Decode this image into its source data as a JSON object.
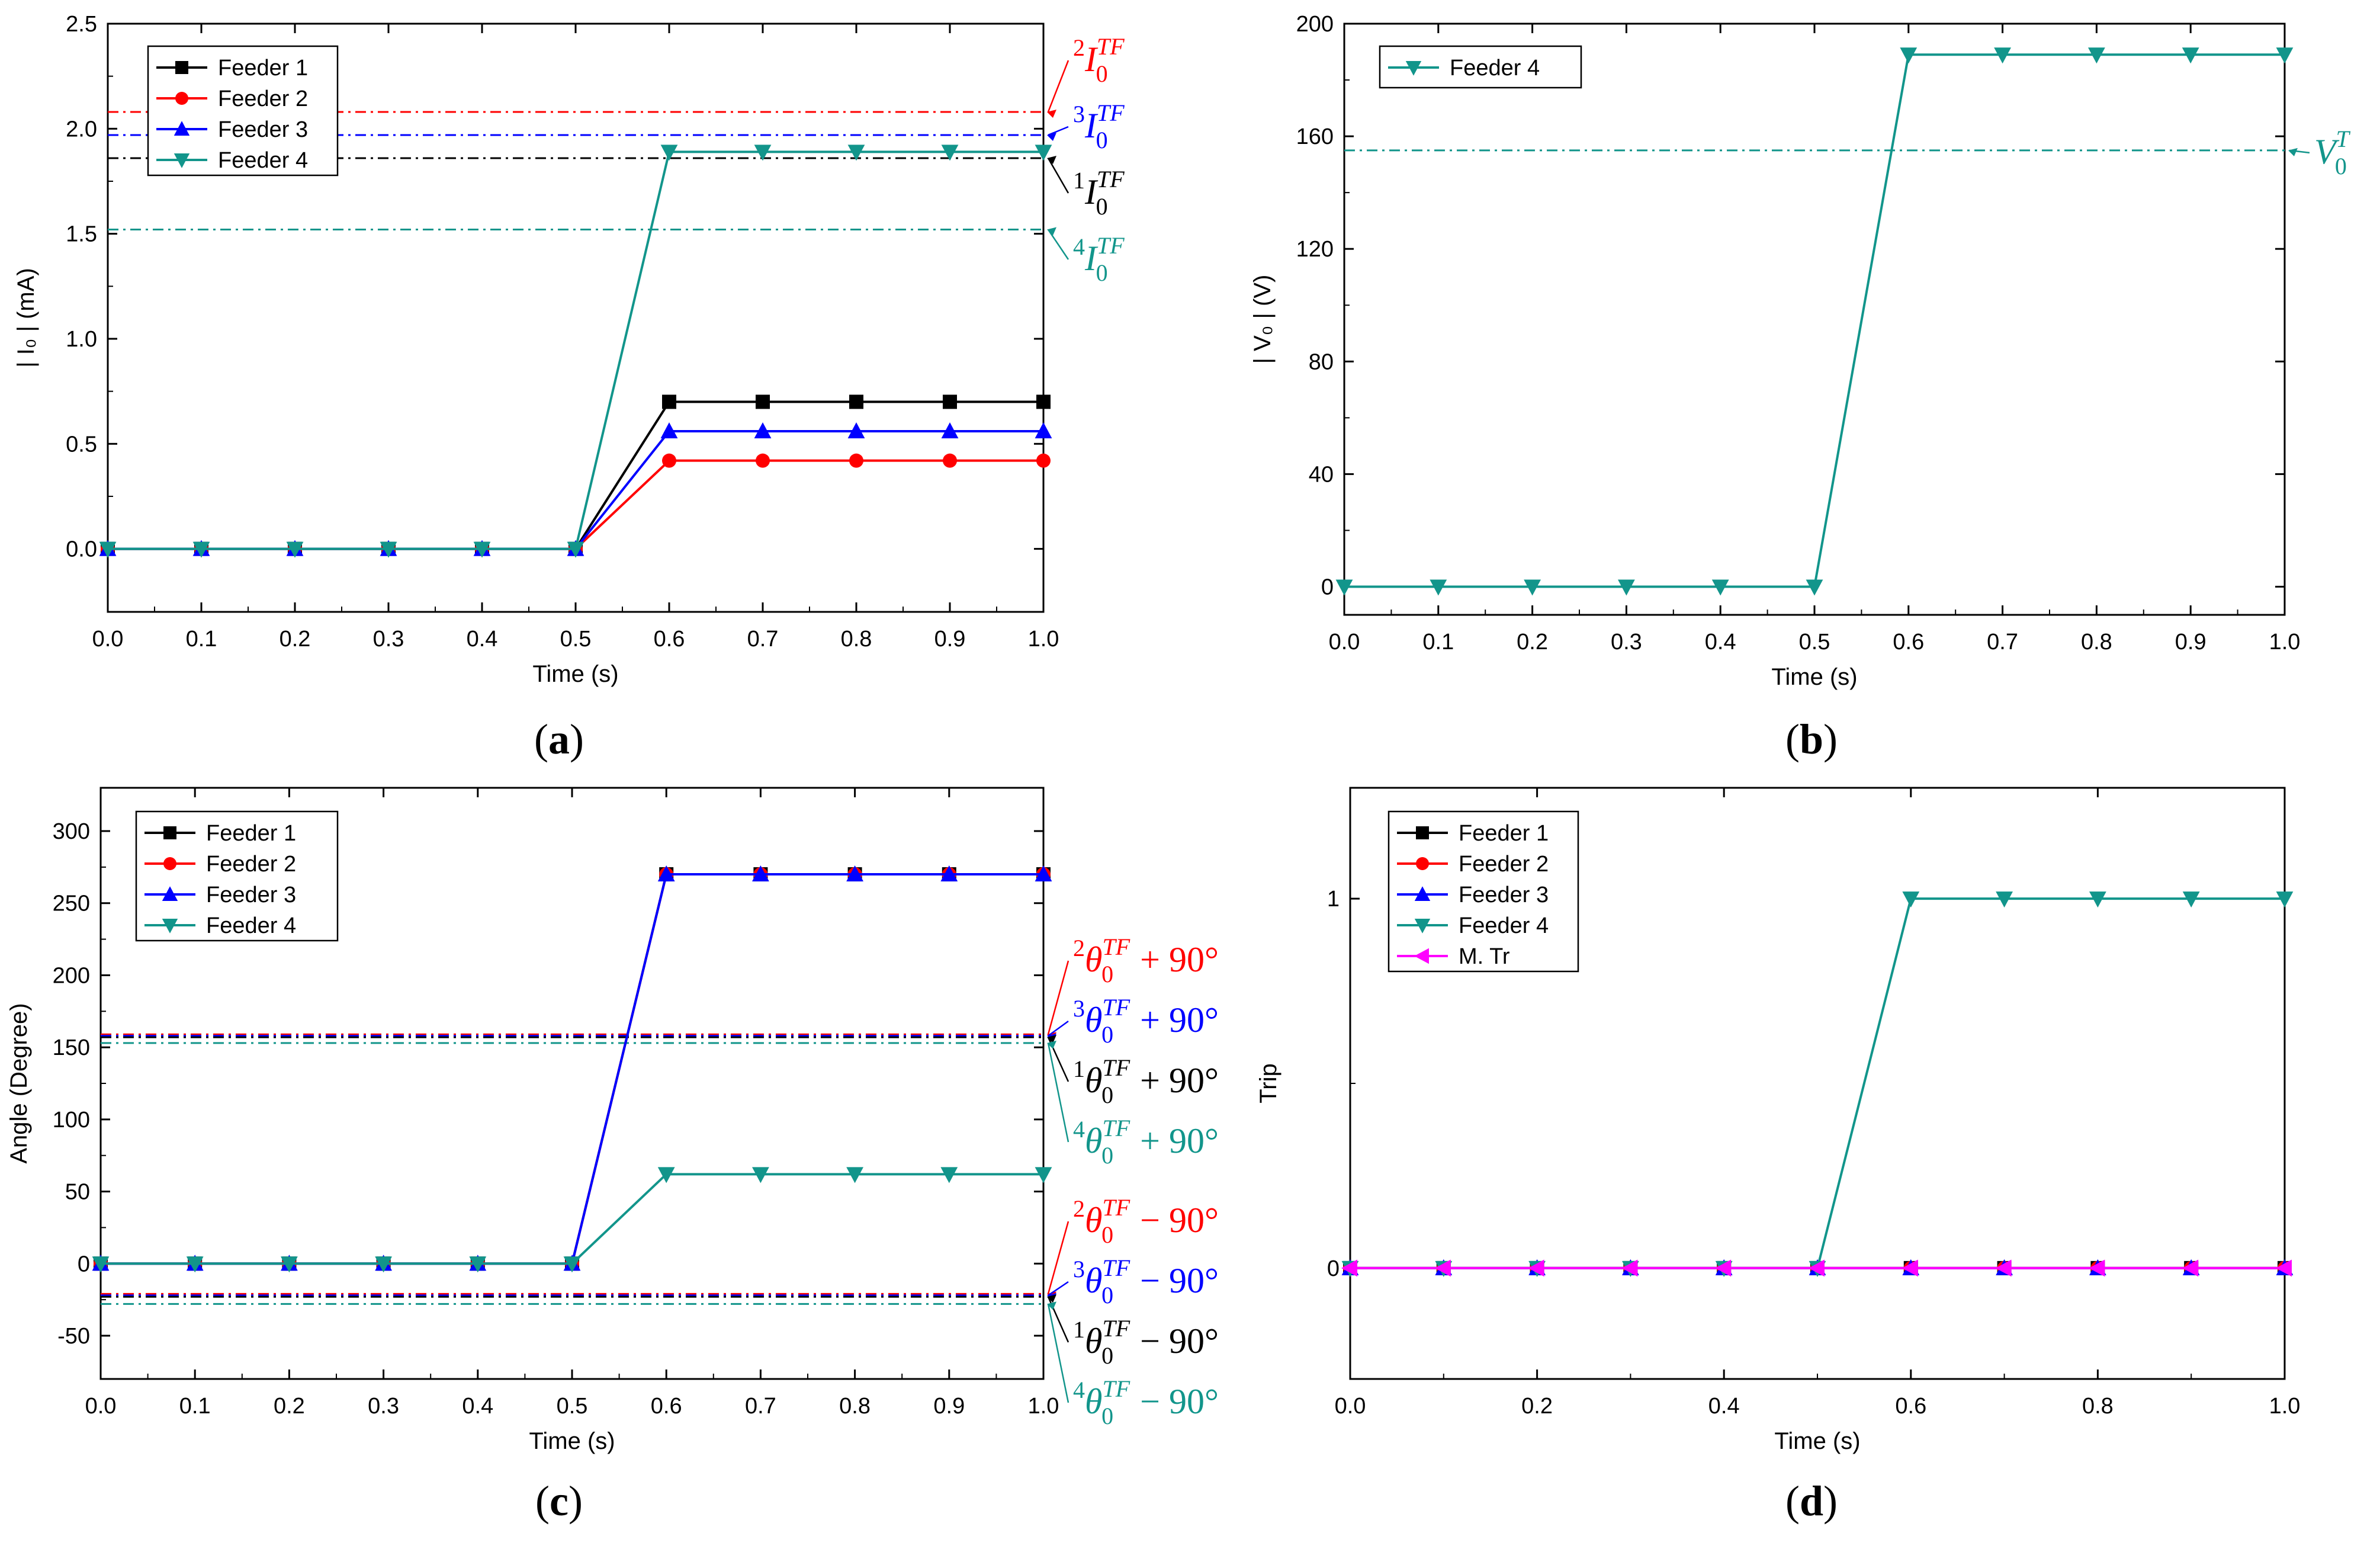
{
  "chart_data": [
    {
      "id": "a",
      "caption": "(a)",
      "type": "line",
      "xlabel": "Time (s)",
      "ylabel": "| I₀ | (mA)",
      "xlim": [
        0,
        1.0
      ],
      "ylim": [
        -0.3,
        2.5
      ],
      "xticks": [
        0.0,
        0.1,
        0.2,
        0.3,
        0.4,
        0.5,
        0.6,
        0.7,
        0.8,
        0.9,
        1.0
      ],
      "xtick_labels": [
        "0.0",
        "0.1",
        "0.2",
        "0.3",
        "0.4",
        "0.5",
        "0.6",
        "0.7",
        "0.8",
        "0.9",
        "1.0"
      ],
      "yticks": [
        0.0,
        0.5,
        1.0,
        1.5,
        2.0,
        2.5
      ],
      "ytick_labels": [
        "0.0",
        "0.5",
        "1.0",
        "1.5",
        "2.0",
        "2.5"
      ],
      "x": [
        0.0,
        0.1,
        0.2,
        0.3,
        0.4,
        0.5,
        0.6,
        0.7,
        0.8,
        0.9,
        1.0
      ],
      "series": [
        {
          "name": "Feeder 1",
          "color": "#000000",
          "marker": "square",
          "values": [
            0,
            0,
            0,
            0,
            0,
            0,
            0.7,
            0.7,
            0.7,
            0.7,
            0.7
          ]
        },
        {
          "name": "Feeder 2",
          "color": "#ff0000",
          "marker": "circle",
          "values": [
            0,
            0,
            0,
            0,
            0,
            0,
            0.42,
            0.42,
            0.42,
            0.42,
            0.42
          ]
        },
        {
          "name": "Feeder 3",
          "color": "#0000ff",
          "marker": "triangle-up",
          "values": [
            0,
            0,
            0,
            0,
            0,
            0,
            0.56,
            0.56,
            0.56,
            0.56,
            0.56
          ]
        },
        {
          "name": "Feeder 4",
          "color": "#12958b",
          "marker": "triangle-down",
          "values": [
            0,
            0,
            0,
            0,
            0,
            0,
            1.89,
            1.89,
            1.89,
            1.89,
            1.89
          ]
        }
      ],
      "thresholds": [
        {
          "value": 2.08,
          "color": "#ff0000",
          "sup": "2",
          "label": "I",
          "sub": "0",
          "supR": "TF",
          "tail": "",
          "pointer": 1
        },
        {
          "value": 1.97,
          "color": "#0000ff",
          "sup": "3",
          "label": "I",
          "sub": "0",
          "supR": "TF",
          "tail": "",
          "pointer": 1
        },
        {
          "value": 1.86,
          "color": "#000000",
          "sup": "1",
          "label": "I",
          "sub": "0",
          "supR": "TF",
          "tail": "",
          "pointer": 1
        },
        {
          "value": 1.52,
          "color": "#12958b",
          "sup": "4",
          "label": "I",
          "sub": "0",
          "supR": "TF",
          "tail": "",
          "pointer": 1
        }
      ],
      "legend_position": "top-left"
    },
    {
      "id": "b",
      "caption": "(b)",
      "type": "line",
      "xlabel": "Time (s)",
      "ylabel": "| V₀ | (V)",
      "xlim": [
        0,
        1.0
      ],
      "ylim": [
        -10,
        200
      ],
      "xticks": [
        0.0,
        0.1,
        0.2,
        0.3,
        0.4,
        0.5,
        0.6,
        0.7,
        0.8,
        0.9,
        1.0
      ],
      "xtick_labels": [
        "0.0",
        "0.1",
        "0.2",
        "0.3",
        "0.4",
        "0.5",
        "0.6",
        "0.7",
        "0.8",
        "0.9",
        "1.0"
      ],
      "yticks": [
        0,
        40,
        80,
        120,
        160,
        200
      ],
      "ytick_labels": [
        "0",
        "40",
        "80",
        "120",
        "160",
        "200"
      ],
      "x": [
        0.0,
        0.1,
        0.2,
        0.3,
        0.4,
        0.5,
        0.6,
        0.7,
        0.8,
        0.9,
        1.0
      ],
      "series": [
        {
          "name": "Feeder 4",
          "color": "#12958b",
          "marker": "triangle-down",
          "values": [
            0,
            0,
            0,
            0,
            0,
            0,
            189,
            189,
            189,
            189,
            189
          ]
        }
      ],
      "thresholds": [
        {
          "value": 155,
          "color": "#12958b",
          "sup": "",
          "label": "V",
          "sub": "0",
          "supR": "T",
          "tail": "",
          "pointer": 1
        }
      ],
      "legend_position": "top-left"
    },
    {
      "id": "c",
      "caption": "(c)",
      "type": "line",
      "xlabel": "Time (s)",
      "ylabel": "Angle (Degree)",
      "xlim": [
        0,
        1.0
      ],
      "ylim": [
        -80,
        330
      ],
      "xticks": [
        0.0,
        0.1,
        0.2,
        0.3,
        0.4,
        0.5,
        0.6,
        0.7,
        0.8,
        0.9,
        1.0
      ],
      "xtick_labels": [
        "0.0",
        "0.1",
        "0.2",
        "0.3",
        "0.4",
        "0.5",
        "0.6",
        "0.7",
        "0.8",
        "0.9",
        "1.0"
      ],
      "yticks": [
        -50,
        0,
        50,
        100,
        150,
        200,
        250,
        300
      ],
      "ytick_labels": [
        "-50",
        "0",
        "50",
        "100",
        "150",
        "200",
        "250",
        "300"
      ],
      "x": [
        0.0,
        0.1,
        0.2,
        0.3,
        0.4,
        0.5,
        0.6,
        0.7,
        0.8,
        0.9,
        1.0
      ],
      "series": [
        {
          "name": "Feeder 1",
          "color": "#000000",
          "marker": "square",
          "values": [
            0,
            0,
            0,
            0,
            0,
            0,
            270,
            270,
            270,
            270,
            270
          ]
        },
        {
          "name": "Feeder 2",
          "color": "#ff0000",
          "marker": "circle",
          "values": [
            0,
            0,
            0,
            0,
            0,
            0,
            270,
            270,
            270,
            270,
            270
          ]
        },
        {
          "name": "Feeder 3",
          "color": "#0000ff",
          "marker": "triangle-up",
          "values": [
            0,
            0,
            0,
            0,
            0,
            0,
            270,
            270,
            270,
            270,
            270
          ]
        },
        {
          "name": "Feeder 4",
          "color": "#12958b",
          "marker": "triangle-down",
          "values": [
            0,
            0,
            0,
            0,
            0,
            0,
            62,
            62,
            62,
            62,
            62
          ]
        }
      ],
      "thresholds": [
        {
          "value": 159,
          "color": "#ff0000",
          "sup": "2",
          "label": "θ",
          "sub": "0",
          "supR": "TF",
          "tail": " + 90°",
          "pointer": 1
        },
        {
          "value": 158,
          "color": "#0000ff",
          "sup": "3",
          "label": "θ",
          "sub": "0",
          "supR": "TF",
          "tail": " + 90°",
          "pointer": 1
        },
        {
          "value": 157,
          "color": "#000000",
          "sup": "1",
          "label": "θ",
          "sub": "0",
          "supR": "TF",
          "tail": " + 90°",
          "pointer": 1
        },
        {
          "value": 153,
          "color": "#12958b",
          "sup": "4",
          "label": "θ",
          "sub": "0",
          "supR": "TF",
          "tail": " + 90°",
          "pointer": 1
        },
        {
          "value": -21,
          "color": "#ff0000",
          "sup": "2",
          "label": "θ",
          "sub": "0",
          "supR": "TF",
          "tail": " − 90°",
          "pointer": 1
        },
        {
          "value": -22,
          "color": "#0000ff",
          "sup": "3",
          "label": "θ",
          "sub": "0",
          "supR": "TF",
          "tail": " − 90°",
          "pointer": 1
        },
        {
          "value": -23,
          "color": "#000000",
          "sup": "1",
          "label": "θ",
          "sub": "0",
          "supR": "TF",
          "tail": " − 90°",
          "pointer": 1
        },
        {
          "value": -28,
          "color": "#12958b",
          "sup": "4",
          "label": "θ",
          "sub": "0",
          "supR": "TF",
          "tail": " − 90°",
          "pointer": 1
        }
      ],
      "legend_position": "top-left"
    },
    {
      "id": "d",
      "caption": "(d)",
      "type": "line",
      "xlabel": "Time (s)",
      "ylabel": "Trip",
      "xlim": [
        0,
        1.0
      ],
      "ylim": [
        -0.3,
        1.3
      ],
      "xticks": [
        0.0,
        0.2,
        0.4,
        0.6,
        0.8,
        1.0
      ],
      "xtick_labels": [
        "0.0",
        "0.2",
        "0.4",
        "0.6",
        "0.8",
        "1.0"
      ],
      "yticks": [
        0,
        1
      ],
      "ytick_labels": [
        "0",
        "1"
      ],
      "x": [
        0.0,
        0.1,
        0.2,
        0.3,
        0.4,
        0.5,
        0.6,
        0.7,
        0.8,
        0.9,
        1.0
      ],
      "series": [
        {
          "name": "Feeder 1",
          "color": "#000000",
          "marker": "square",
          "values": [
            0,
            0,
            0,
            0,
            0,
            0,
            0,
            0,
            0,
            0,
            0
          ]
        },
        {
          "name": "Feeder 2",
          "color": "#ff0000",
          "marker": "circle",
          "values": [
            0,
            0,
            0,
            0,
            0,
            0,
            0,
            0,
            0,
            0,
            0
          ]
        },
        {
          "name": "Feeder 3",
          "color": "#0000ff",
          "marker": "triangle-up",
          "values": [
            0,
            0,
            0,
            0,
            0,
            0,
            0,
            0,
            0,
            0,
            0
          ]
        },
        {
          "name": "Feeder 4",
          "color": "#12958b",
          "marker": "triangle-down",
          "values": [
            0,
            0,
            0,
            0,
            0,
            0,
            1,
            1,
            1,
            1,
            1
          ]
        },
        {
          "name": "M. Tr",
          "color": "#ff00ff",
          "marker": "triangle-left",
          "values": [
            0,
            0,
            0,
            0,
            0,
            0,
            0,
            0,
            0,
            0,
            0
          ]
        }
      ],
      "thresholds": [],
      "legend_position": "top-left"
    }
  ]
}
